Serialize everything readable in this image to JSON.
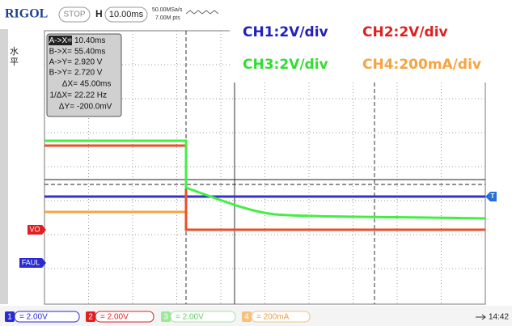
{
  "header": {
    "logo": "RIGOL",
    "status": "STOP",
    "timebase_label": "H",
    "timebase": "10.00ms",
    "sample_rate": "50.00MSa/s",
    "memory_depth": "7.00M pts",
    "trigger_position": "T"
  },
  "overlay": {
    "ch1": "CH1:2V/div",
    "ch2": "CH2:2V/div",
    "ch3": "CH3:2V/div",
    "ch4": "CH4:200mA/div"
  },
  "side_menu": {
    "label": [
      "水",
      "平"
    ]
  },
  "cursor_readout": [
    {
      "label": "A->X=",
      "value": "10.40ms"
    },
    {
      "label": "B->X=",
      "value": "55.40ms"
    },
    {
      "label": "A->Y=",
      "value": "2.920 V"
    },
    {
      "label": "B->Y=",
      "value": "2.720 V"
    },
    {
      "label": "ΔX=",
      "value": "45.00ms"
    },
    {
      "label": "1/ΔX=",
      "value": "22.22 Hz"
    },
    {
      "label": "ΔY=",
      "value": "-200.0mV"
    }
  ],
  "markers": {
    "trigger": "T",
    "vo": "VO",
    "faul": "FAUL"
  },
  "bottom_bar": {
    "channels": [
      {
        "number": "1",
        "scale": "= 2.00V"
      },
      {
        "number": "2",
        "scale": "= 2.00V"
      },
      {
        "number": "3",
        "scale": "= 2.00V"
      },
      {
        "number": "4",
        "scale": "= 200mA"
      }
    ],
    "time": "14:42"
  }
}
